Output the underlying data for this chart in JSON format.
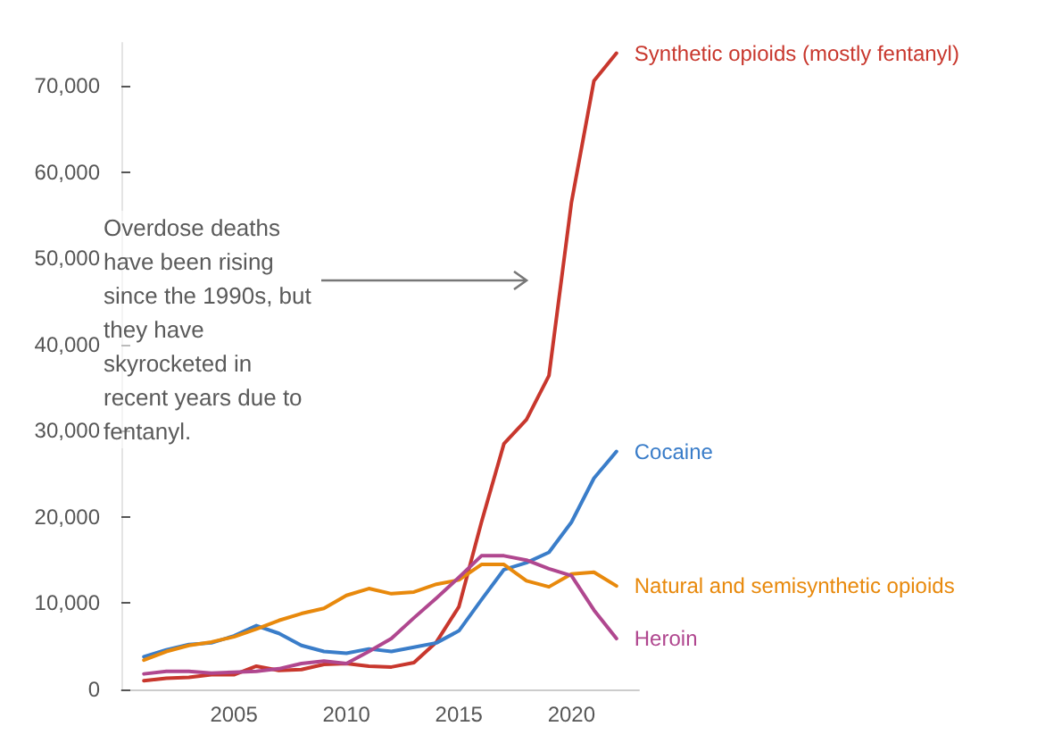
{
  "chart_data": {
    "type": "line",
    "x": [
      2001,
      2002,
      2003,
      2004,
      2005,
      2006,
      2007,
      2008,
      2009,
      2010,
      2011,
      2012,
      2013,
      2014,
      2015,
      2016,
      2017,
      2018,
      2019,
      2020,
      2021,
      2022
    ],
    "series": [
      {
        "name": "Synthetic opioids (mostly fentanyl)",
        "color": "#c8372d",
        "values": [
          1000,
          1300,
          1400,
          1700,
          1700,
          2700,
          2200,
          2300,
          2900,
          3000,
          2700,
          2600,
          3100,
          5500,
          9600,
          19400,
          28500,
          31300,
          36400,
          56500,
          70600,
          73800
        ]
      },
      {
        "name": "Cocaine",
        "color": "#3a7dc9",
        "values": [
          3800,
          4600,
          5200,
          5400,
          6200,
          7400,
          6500,
          5100,
          4400,
          4200,
          4700,
          4400,
          4900,
          5400,
          6800,
          10400,
          13900,
          14700,
          15900,
          19400,
          24500,
          27600
        ]
      },
      {
        "name": "Natural and semisynthetic opioids",
        "color": "#e8890c",
        "values": [
          3400,
          4400,
          5100,
          5500,
          6100,
          7000,
          8000,
          8800,
          9400,
          10900,
          11700,
          11100,
          11300,
          12200,
          12700,
          14500,
          14500,
          12600,
          11900,
          13400,
          13600,
          12000
        ]
      },
      {
        "name": "Heroin",
        "color": "#b0478f",
        "values": [
          1800,
          2100,
          2100,
          1900,
          2000,
          2100,
          2400,
          3000,
          3300,
          3000,
          4400,
          5900,
          8300,
          10600,
          13000,
          15500,
          15500,
          15000,
          14000,
          13200,
          9200,
          5900
        ]
      }
    ],
    "xlim": [
      2000,
      2023
    ],
    "xticks": [
      2005,
      2010,
      2015,
      2020
    ],
    "ylim": [
      0,
      75000
    ],
    "yticks": [
      0,
      {
        "value": 10000,
        "label": "10,000"
      },
      {
        "value": 20000,
        "label": "20,000"
      },
      {
        "value": 30000,
        "label": "30,000"
      },
      {
        "value": 40000,
        "label": "40,000"
      },
      {
        "value": 50000,
        "label": "50,000"
      },
      {
        "value": 60000,
        "label": "60,000"
      },
      {
        "value": 70000,
        "label": "70,000"
      }
    ],
    "annotations": [
      "Overdose deaths have been rising since the 1990s, but they have skyrocketed in recent years due to fentanyl."
    ],
    "grid": false,
    "legend": false,
    "marker": "none",
    "line_style": "solid"
  }
}
